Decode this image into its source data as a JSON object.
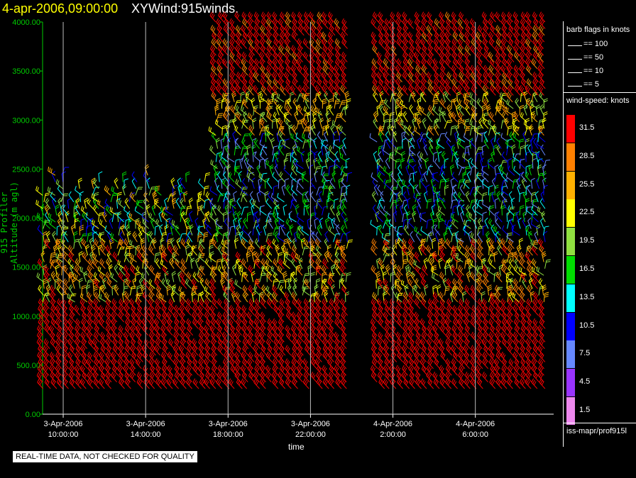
{
  "header": {
    "datetime": "4-apr-2006,09:00:00",
    "product": "XYWind:915winds."
  },
  "chart_data": {
    "type": "wind-barb time-height",
    "title": "4-apr-2006,09:00:00 XYWind:915winds.",
    "xlabel": "time",
    "ylabel": "915 Profiler Altitude (m agl)",
    "y_ticks": [
      "0.00",
      "500.00",
      "1000.00",
      "1500.00",
      "2000.00",
      "2500.00",
      "3000.00",
      "3500.00",
      "4000.00"
    ],
    "ylim": [
      0,
      4000
    ],
    "x_ticks": [
      {
        "date": "3-Apr-2006",
        "time": "10:00:00"
      },
      {
        "date": "3-Apr-2006",
        "time": "14:00:00"
      },
      {
        "date": "3-Apr-2006",
        "time": "18:00:00"
      },
      {
        "date": "3-Apr-2006",
        "time": "22:00:00"
      },
      {
        "date": "4-Apr-2006",
        "time": "2:00:00"
      },
      {
        "date": "4-Apr-2006",
        "time": "6:00:00"
      }
    ],
    "xlim_hours": [
      9.0,
      33.8
    ],
    "grid": "vertical lines at x ticks",
    "gap": {
      "start_hours": 23.8,
      "end_hours": 25.2
    },
    "legend_flags_title": "barb flags in knots",
    "legend_flags": [
      "== 100",
      "== 50",
      "== 10",
      "== 5"
    ],
    "colorbar_title": "wind-speed: knots",
    "colorbar": [
      {
        "label": "31.5",
        "color": "#ff0000"
      },
      {
        "label": "28.5",
        "color": "#ff8000"
      },
      {
        "label": "25.5",
        "color": "#ffb000"
      },
      {
        "label": "22.5",
        "color": "#ffff00"
      },
      {
        "label": "19.5",
        "color": "#90e040"
      },
      {
        "label": "16.5",
        "color": "#00dd00"
      },
      {
        "label": "13.5",
        "color": "#00ffff"
      },
      {
        "label": "10.5",
        "color": "#0000ff"
      },
      {
        "label": "7.5",
        "color": "#6688ff"
      },
      {
        "label": "4.5",
        "color": "#9933ff"
      },
      {
        "label": "1.5",
        "color": "#ee88ee"
      }
    ]
  },
  "footer": {
    "source": "iss-mapr/prof915l",
    "warning": "REAL-TIME DATA, NOT CHECKED FOR QUALITY"
  }
}
